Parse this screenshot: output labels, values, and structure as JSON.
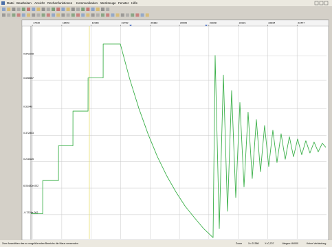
{
  "window": {
    "menu": [
      "Datei",
      "Bearbeiten",
      "Ansicht",
      "Rechenfunktionen",
      "Kommunikation",
      "Werkzeuge",
      "Fenster",
      "Hilfe"
    ],
    "status": {
      "hint": "Zum Auswählen des zu vergrößernden Bereichs die Maus verwenden",
      "mode": "Zoom",
      "x": "X=:21386",
      "y": "Y=0,707",
      "length": "Längen: 84000",
      "connection": "Keine Verbindung"
    }
  },
  "chart_data": {
    "type": "line",
    "xlim": [
      17900,
      24060
    ],
    "ylim": [
      -0.24,
      1.02
    ],
    "xticks": [
      17930,
      18543,
      19156,
      19769,
      20382,
      20995,
      21608,
      22221,
      22834,
      23447
    ],
    "yticks": [
      {
        "value": -0.097229,
        "label": "-9.7229e-002"
      },
      {
        "value": 0.0604482,
        "label": "6.04482e-002"
      },
      0.218125,
      0.372803,
      {
        "value": 0.5294,
        "label": "0.52940"
      },
      0.698557,
      0.842208
    ],
    "grid": true,
    "series": [
      {
        "color": "#3cb04a",
        "x": [
          17901,
          18145,
          18146,
          18474,
          18475,
          18775,
          18776,
          19090,
          19091,
          19405,
          19406,
          19763,
          19956,
          20150,
          20343,
          20536,
          20730,
          20923,
          21116,
          21310,
          21503,
          21696,
          21739,
          21825,
          21911,
          21997,
          22083,
          22169,
          22255,
          22341,
          22426,
          22512,
          22598,
          22684,
          22770,
          22856,
          22942,
          23028,
          23114,
          23200,
          23286,
          23372,
          23458,
          23544,
          23629,
          23715,
          23801,
          23887,
          23973,
          24045
        ],
        "values": [
          -0.092,
          -0.092,
          0.105,
          0.105,
          0.311,
          0.311,
          0.516,
          0.516,
          0.713,
          0.713,
          0.914,
          0.914,
          0.709,
          0.532,
          0.379,
          0.246,
          0.133,
          0.037,
          -0.048,
          -0.116,
          -0.181,
          -0.233,
          0.846,
          -0.18,
          0.73,
          -0.077,
          0.638,
          0.004,
          0.567,
          0.067,
          0.51,
          0.117,
          0.466,
          0.157,
          0.431,
          0.188,
          0.403,
          0.212,
          0.382,
          0.231,
          0.365,
          0.246,
          0.351,
          0.258,
          0.341,
          0.268,
          0.333,
          0.275,
          0.326,
          0.302
        ]
      }
    ]
  }
}
